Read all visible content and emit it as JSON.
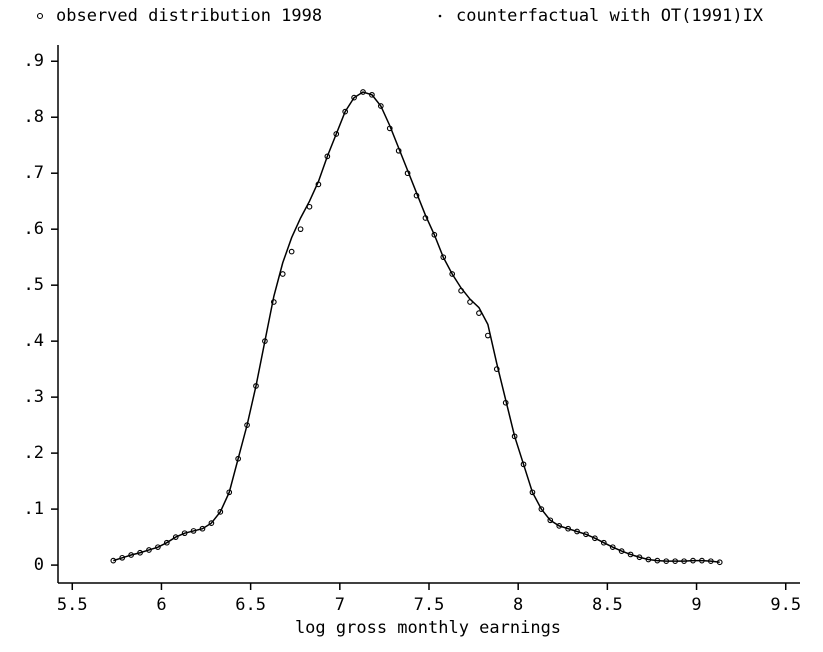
{
  "chart_data": {
    "type": "line",
    "x_label": "log gross monthly earnings",
    "x": [
      5.73,
      5.78,
      5.83,
      5.88,
      5.93,
      5.98,
      6.03,
      6.08,
      6.13,
      6.18,
      6.23,
      6.28,
      6.33,
      6.38,
      6.43,
      6.48,
      6.53,
      6.58,
      6.63,
      6.68,
      6.73,
      6.78,
      6.83,
      6.88,
      6.93,
      6.98,
      7.03,
      7.08,
      7.13,
      7.18,
      7.23,
      7.28,
      7.33,
      7.38,
      7.43,
      7.48,
      7.53,
      7.58,
      7.63,
      7.68,
      7.73,
      7.78,
      7.83,
      7.88,
      7.93,
      7.98,
      8.03,
      8.08,
      8.13,
      8.18,
      8.23,
      8.28,
      8.33,
      8.38,
      8.43,
      8.48,
      8.53,
      8.58,
      8.63,
      8.68,
      8.73,
      8.78,
      8.83,
      8.88,
      8.93,
      8.98,
      9.03,
      9.08,
      9.13
    ],
    "series": [
      {
        "name": "observed distribution 1998",
        "color": "#000000",
        "marker": "circle",
        "values": [
          0.008,
          0.013,
          0.018,
          0.022,
          0.027,
          0.032,
          0.04,
          0.05,
          0.057,
          0.061,
          0.065,
          0.075,
          0.095,
          0.13,
          0.19,
          0.25,
          0.32,
          0.4,
          0.47,
          0.52,
          0.56,
          0.6,
          0.64,
          0.68,
          0.73,
          0.77,
          0.81,
          0.835,
          0.845,
          0.84,
          0.82,
          0.78,
          0.74,
          0.7,
          0.66,
          0.62,
          0.59,
          0.55,
          0.52,
          0.49,
          0.47,
          0.45,
          0.41,
          0.35,
          0.29,
          0.23,
          0.18,
          0.13,
          0.1,
          0.08,
          0.07,
          0.065,
          0.06,
          0.055,
          0.048,
          0.04,
          0.032,
          0.025,
          0.019,
          0.014,
          0.01,
          0.008,
          0.007,
          0.007,
          0.007,
          0.008,
          0.008,
          0.007,
          0.005
        ]
      },
      {
        "name": "counterfactual with OT(1991)IX",
        "color": "#000000",
        "marker": "line",
        "values": [
          0.008,
          0.013,
          0.018,
          0.022,
          0.027,
          0.032,
          0.04,
          0.05,
          0.057,
          0.061,
          0.065,
          0.075,
          0.095,
          0.13,
          0.19,
          0.25,
          0.32,
          0.4,
          0.48,
          0.54,
          0.585,
          0.62,
          0.65,
          0.685,
          0.73,
          0.77,
          0.81,
          0.835,
          0.845,
          0.84,
          0.82,
          0.785,
          0.745,
          0.705,
          0.665,
          0.625,
          0.59,
          0.55,
          0.52,
          0.495,
          0.475,
          0.46,
          0.43,
          0.36,
          0.295,
          0.23,
          0.18,
          0.13,
          0.1,
          0.08,
          0.07,
          0.065,
          0.06,
          0.055,
          0.048,
          0.04,
          0.032,
          0.025,
          0.019,
          0.014,
          0.01,
          0.008,
          0.007,
          0.007,
          0.007,
          0.008,
          0.008,
          0.007,
          0.005
        ]
      }
    ],
    "xlim": [
      5.42,
      9.58
    ],
    "ylim": [
      -0.032,
      0.929
    ],
    "xticks": [
      5.5,
      6,
      6.5,
      7,
      7.5,
      8,
      8.5,
      9,
      9.5
    ],
    "yticks": [
      0,
      {
        "value": 0.1,
        "label": ".1"
      },
      {
        "value": 0.2,
        "label": ".2"
      },
      {
        "value": 0.3,
        "label": ".3"
      },
      {
        "value": 0.4,
        "label": ".4"
      },
      {
        "value": 0.5,
        "label": ".5"
      },
      {
        "value": 0.6,
        "label": ".6"
      },
      {
        "value": 0.7,
        "label": ".7"
      },
      {
        "value": 0.8,
        "label": ".8"
      },
      {
        "value": 0.9,
        "label": ".9"
      }
    ],
    "legend": "top"
  }
}
